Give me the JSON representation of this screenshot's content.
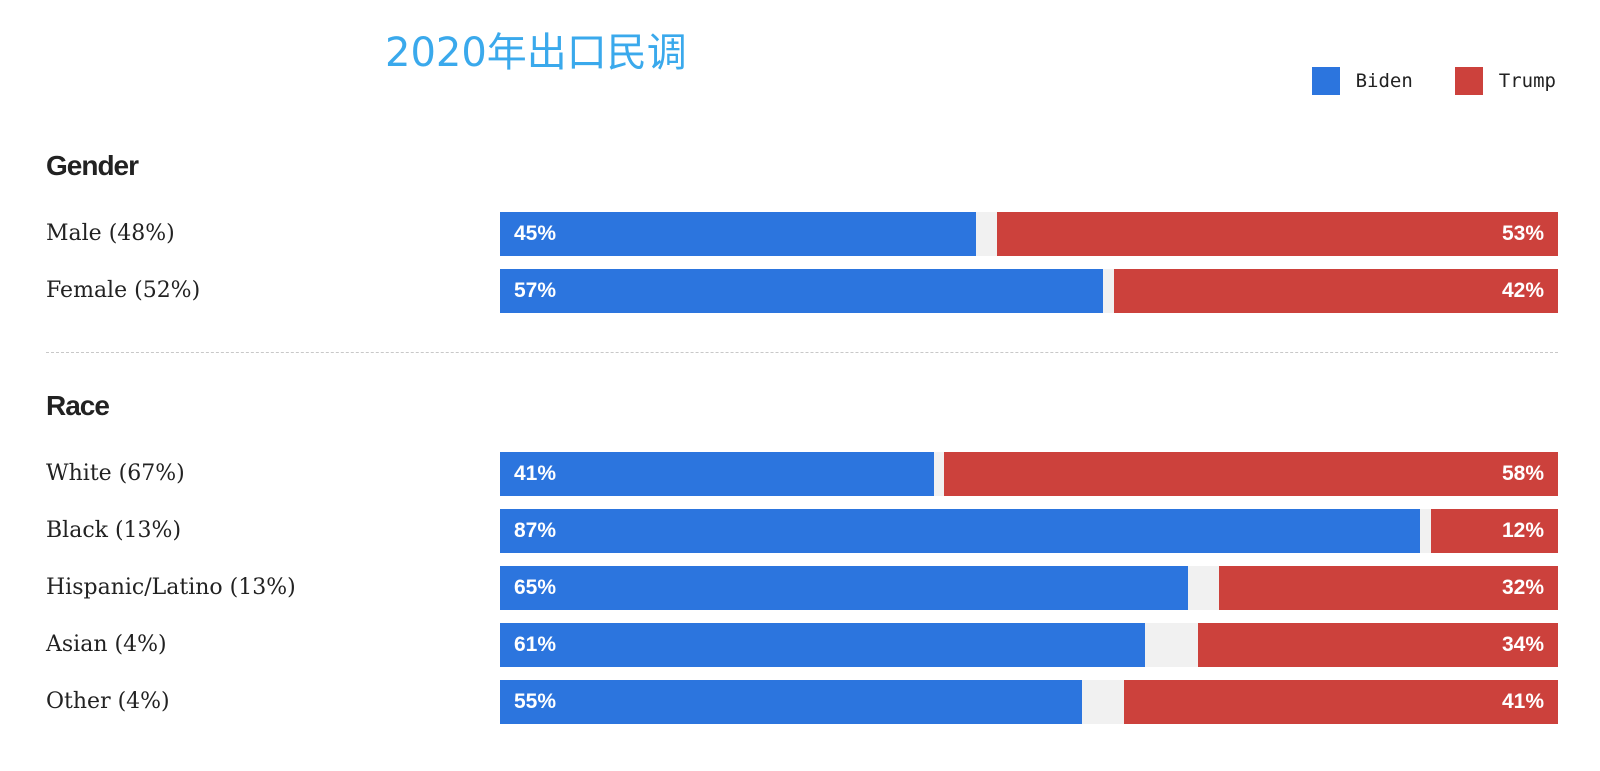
{
  "title": "2020年出口民调",
  "legend": [
    {
      "name": "Biden",
      "color": "#2c75de"
    },
    {
      "name": "Trump",
      "color": "#cc413c"
    }
  ],
  "chart_data": {
    "type": "bar",
    "orientation": "horizontal",
    "stacked": true,
    "xlim": [
      0,
      100
    ],
    "series": [
      {
        "name": "Biden",
        "color": "#2c75de"
      },
      {
        "name": "Trump",
        "color": "#cc413c"
      }
    ],
    "groups": [
      {
        "heading": "Gender",
        "rows": [
          {
            "label": "Male (48%)",
            "biden": 45,
            "trump": 53,
            "biden_label": "45%",
            "trump_label": "53%"
          },
          {
            "label": "Female (52%)",
            "biden": 57,
            "trump": 42,
            "biden_label": "57%",
            "trump_label": "42%"
          }
        ]
      },
      {
        "heading": "Race",
        "rows": [
          {
            "label": "White (67%)",
            "biden": 41,
            "trump": 58,
            "biden_label": "41%",
            "trump_label": "58%"
          },
          {
            "label": "Black (13%)",
            "biden": 87,
            "trump": 12,
            "biden_label": "87%",
            "trump_label": "12%"
          },
          {
            "label": "Hispanic/Latino (13%)",
            "biden": 65,
            "trump": 32,
            "biden_label": "65%",
            "trump_label": "32%"
          },
          {
            "label": "Asian (4%)",
            "biden": 61,
            "trump": 34,
            "biden_label": "61%",
            "trump_label": "34%"
          },
          {
            "label": "Other (4%)",
            "biden": 55,
            "trump": 41,
            "biden_label": "55%",
            "trump_label": "41%"
          }
        ]
      }
    ]
  }
}
